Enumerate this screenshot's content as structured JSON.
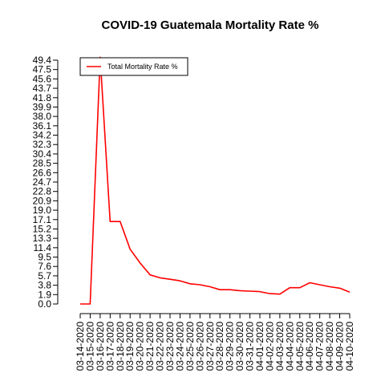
{
  "chart_data": {
    "type": "line",
    "title": "COVID-19 Guatemala Mortality Rate %",
    "xlabel": "",
    "ylabel": "",
    "x": [
      "03-14-2020",
      "03-15-2020",
      "03-16-2020",
      "03-17-2020",
      "03-18-2020",
      "03-19-2020",
      "03-20-2020",
      "03-21-2020",
      "03-22-2020",
      "03-23-2020",
      "03-24-2020",
      "03-25-2020",
      "03-26-2020",
      "03-27-2020",
      "03-28-2020",
      "03-29-2020",
      "03-30-2020",
      "03-31-2020",
      "04-01-2020",
      "04-02-2020",
      "04-03-2020",
      "04-04-2020",
      "04-05-2020",
      "04-06-2020",
      "04-07-2020",
      "04-08-2020",
      "04-09-2020",
      "04-10-2020"
    ],
    "yticks": [
      "0.0",
      "1.9",
      "3.8",
      "5.7",
      "7.6",
      "9.5",
      "11.4",
      "13.3",
      "15.2",
      "17.1",
      "19.0",
      "20.9",
      "22.8",
      "24.7",
      "26.6",
      "28.5",
      "30.4",
      "32.3",
      "34.2",
      "36.1",
      "38.0",
      "39.9",
      "41.8",
      "43.7",
      "45.6",
      "47.5",
      "49.4"
    ],
    "ylim": [
      0,
      49.4
    ],
    "series": [
      {
        "name": "Total Mortality Rate %",
        "color": "#ff0000",
        "values": [
          0.0,
          0.0,
          50.0,
          16.7,
          16.7,
          11.1,
          8.3,
          5.9,
          5.3,
          5.0,
          4.7,
          4.1,
          3.9,
          3.5,
          2.9,
          2.9,
          2.7,
          2.6,
          2.5,
          2.1,
          2.0,
          3.3,
          3.3,
          4.3,
          3.9,
          3.5,
          3.2,
          2.4
        ]
      }
    ],
    "legend": {
      "position": "top-left"
    },
    "grid": false
  }
}
